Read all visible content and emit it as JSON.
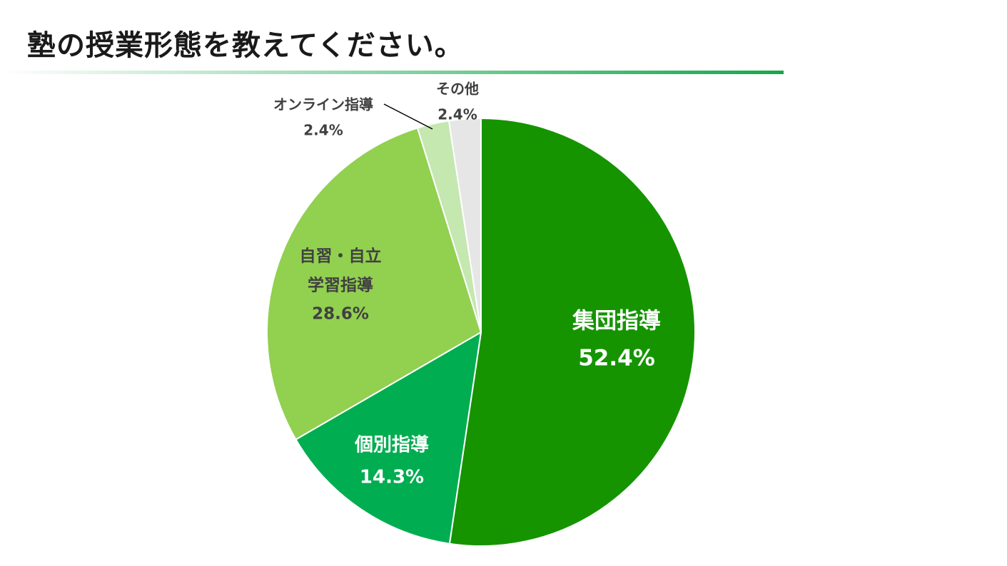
{
  "title": "塾の授業形態を教えてください。",
  "colors": {
    "rule_start": "#ffffff",
    "rule_end": "#13a84a",
    "slice_edge": "#ffffff",
    "leader_line": "#000000"
  },
  "chart_data": {
    "type": "pie",
    "start_angle_deg": 0,
    "direction": "clockwise",
    "slices": [
      {
        "label_lines": [
          "集団指導"
        ],
        "value": 52.4,
        "value_label": "52.4%",
        "color": "#159400",
        "label_color": "#ffffff",
        "label_placement": "inside"
      },
      {
        "label_lines": [
          "個別指導"
        ],
        "value": 14.3,
        "value_label": "14.3%",
        "color": "#00ad50",
        "label_color": "#ffffff",
        "label_placement": "inside"
      },
      {
        "label_lines": [
          "自習・自立",
          "学習指導"
        ],
        "value": 28.6,
        "value_label": "28.6%",
        "color": "#92d050",
        "label_color": "#404040",
        "label_placement": "inside"
      },
      {
        "label_lines": [
          "オンライン指導"
        ],
        "value": 2.4,
        "value_label": "2.4%",
        "color": "#c5e7b0",
        "label_color": "#404040",
        "label_placement": "outside-leader"
      },
      {
        "label_lines": [
          "その他"
        ],
        "value": 2.4,
        "value_label": "2.4%",
        "color": "#e6e6e6",
        "label_color": "#404040",
        "label_placement": "outside"
      }
    ]
  }
}
